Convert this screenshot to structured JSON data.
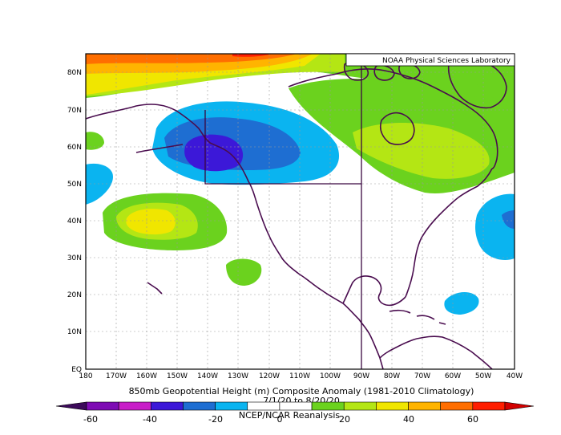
{
  "badge": "NOAA Physical Sciences Laboratory",
  "title_lines": [
    "850mb Geopotential Height (m) Composite Anomaly (1981-2010 Climatology)",
    "7/1/20  to 8/20/20",
    "NCEP/NCAR Reanalysis"
  ],
  "lat_labels": [
    "80N",
    "70N",
    "60N",
    "50N",
    "40N",
    "30N",
    "20N",
    "10N",
    "EQ"
  ],
  "lon_labels": [
    "180",
    "170W",
    "160W",
    "150W",
    "140W",
    "130W",
    "120W",
    "110W",
    "100W",
    "90W",
    "80W",
    "70W",
    "60W",
    "50W",
    "40W"
  ],
  "colorbar": {
    "ticks": [
      "-60",
      "-40",
      "-20",
      "0",
      "20",
      "40",
      "60"
    ],
    "colors": [
      "#7e0cb4",
      "#c81ec8",
      "#3c18d8",
      "#1e6ed2",
      "#0ab4f0",
      "#ffffff",
      "#ffffff",
      "#6bd21e",
      "#b4e614",
      "#f0e600",
      "#ffb400",
      "#ff6e00",
      "#ff1e00"
    ],
    "endcap_low": "#3c0a5a",
    "endcap_high": "#d20000"
  },
  "palette": {
    "purple": "#7e0cb4",
    "blue_dark": "#3c18d8",
    "blue_mid": "#1e6ed2",
    "cyan": "#0ab4f0",
    "green": "#6bd21e",
    "lime": "#b4e614",
    "yellow": "#f0e600",
    "orange": "#ffb400",
    "orange_red": "#ff6e00",
    "red": "#ff1e00",
    "coast": "#4a0d4f"
  }
}
